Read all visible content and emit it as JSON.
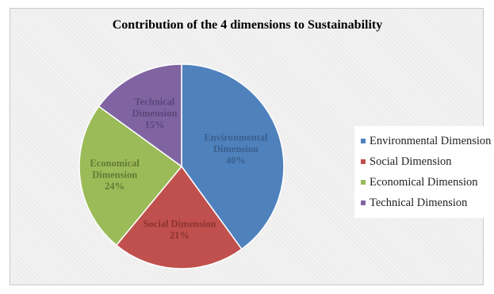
{
  "chart_data": {
    "type": "pie",
    "title": "Contribution of the 4 dimensions to Sustainability",
    "categories": [
      "Environmental Dimension",
      "Social Dimension",
      "Economical Dimension",
      "Technical Dimension"
    ],
    "values": [
      40,
      21,
      24,
      15
    ],
    "value_labels": [
      "40%",
      "21%",
      "24%",
      "15%"
    ],
    "slice_label_lines": [
      [
        "Environmental",
        "Dimension",
        "40%"
      ],
      [
        "Social Dimension",
        "21%"
      ],
      [
        "Economical",
        "Dimension",
        "24%"
      ],
      [
        "Technical",
        "Dimension",
        "15%"
      ]
    ],
    "colors": [
      "#4f81bd",
      "#c0504d",
      "#9bbb59",
      "#8064a2"
    ],
    "label_colors": [
      "#3a5f8c",
      "#8a3331",
      "#637a34",
      "#5a467a"
    ],
    "start_angle_deg": 0,
    "direction": "clockwise",
    "legend": {
      "position": "right",
      "entries": [
        "Environmental Dimension",
        "Social Dimension",
        "Economical Dimension",
        "Technical Dimension"
      ]
    }
  }
}
